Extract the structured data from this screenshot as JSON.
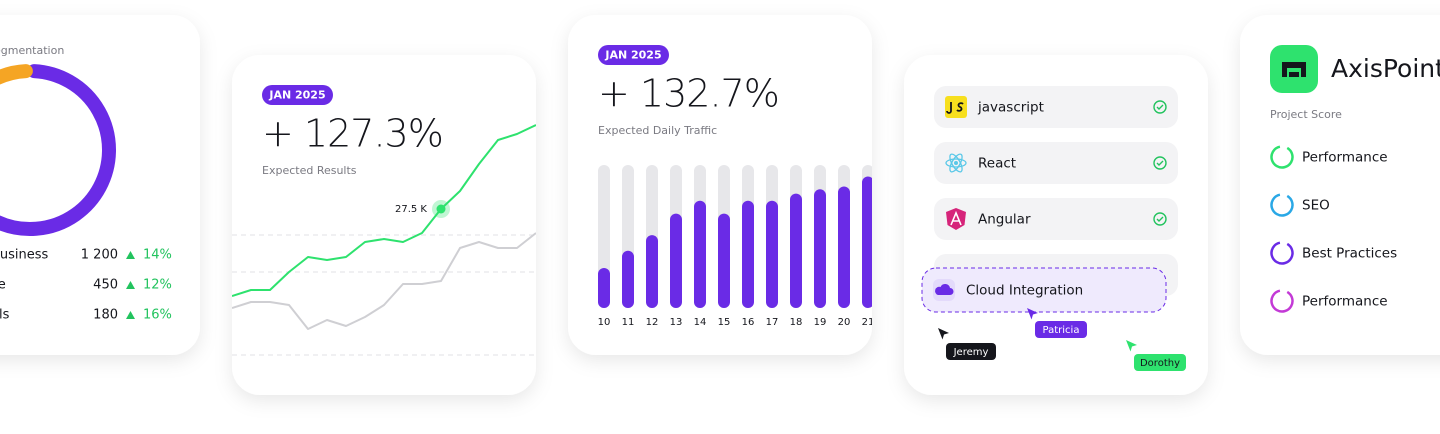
{
  "segmentation": {
    "title": "Segmentation",
    "rows": [
      {
        "name": "Business",
        "value": 1200,
        "value_label": "1 200",
        "change": "14%",
        "color": "#6a2be6"
      },
      {
        "name": "se",
        "value": 450,
        "value_label": "450",
        "change": "12%",
        "color": "#2ee26e"
      },
      {
        "name": "als",
        "value": 180,
        "value_label": "180",
        "change": "16%",
        "color": "#f5a524"
      }
    ]
  },
  "results": {
    "badge": "JAN 2025",
    "headline": "+ 127.3%",
    "caption": "Expected Results",
    "chart": {
      "type": "line",
      "ylim": [
        0,
        100
      ],
      "series": [
        {
          "color": "#cfcfd3",
          "values": [
            29,
            31,
            31,
            30,
            22,
            25,
            23,
            26,
            30,
            37,
            37,
            38,
            49,
            51,
            49,
            49,
            54
          ]
        },
        {
          "color": "#2ee26e",
          "values": [
            33,
            35,
            35,
            41,
            46,
            45,
            46,
            51,
            52,
            51,
            54,
            62,
            68,
            77,
            85,
            87,
            90
          ]
        }
      ],
      "highlight": {
        "series": 1,
        "index": 11,
        "label": "27.5 K"
      }
    }
  },
  "traffic": {
    "badge": "JAN 2025",
    "headline": "+ 132.7%",
    "caption": "Expected Daily Traffic",
    "chart": {
      "type": "bar",
      "categories": [
        "10",
        "11",
        "12",
        "13",
        "14",
        "15",
        "16",
        "17",
        "18",
        "19",
        "20",
        "21"
      ],
      "values": [
        28,
        40,
        51,
        66,
        75,
        66,
        75,
        75,
        80,
        83,
        85,
        92
      ],
      "color": "#6a2be6",
      "track_color": "#e7e7ea",
      "ylim": [
        0,
        100
      ]
    }
  },
  "stack": {
    "items": [
      "javascript",
      "React",
      "Angular"
    ],
    "dragged": "Cloud Integration",
    "cursors": [
      {
        "name": "Jeremy",
        "color": "#15161c"
      },
      {
        "name": "Patricia",
        "color": "#6a2be6"
      },
      {
        "name": "Dorothy",
        "color": "#2ee26e"
      }
    ]
  },
  "score": {
    "brand": "AxisPoint",
    "label": "Project Score",
    "items": [
      {
        "name": "Performance",
        "color": "#2ee26e"
      },
      {
        "name": "SEO",
        "color": "#2aa8e6"
      },
      {
        "name": "Best Practices",
        "color": "#6a2be6"
      },
      {
        "name": "Performance",
        "color": "#c33ad6"
      }
    ]
  }
}
